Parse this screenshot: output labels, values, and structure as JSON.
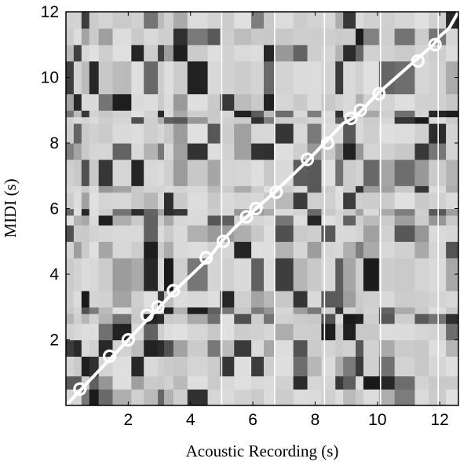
{
  "chart_data": {
    "type": "heatmap",
    "title": "",
    "xlabel": "Acoustic Recording (s)",
    "ylabel": "MIDI (s)",
    "xlim": [
      0,
      12.6
    ],
    "ylim": [
      0,
      12
    ],
    "x_ticks": [
      2,
      4,
      6,
      8,
      10,
      12
    ],
    "y_ticks": [
      2,
      4,
      6,
      8,
      10,
      12
    ],
    "grid": false,
    "colormap": "grayscale",
    "colors": {
      "background": "#d6d6d6",
      "path": "#ffffff",
      "frame": "#000000"
    },
    "column_breaks": [
      0,
      0.25,
      0.5,
      0.75,
      1.05,
      1.5,
      2.1,
      2.5,
      2.95,
      3.15,
      3.45,
      3.9,
      4.55,
      4.95,
      5.4,
      5.95,
      6.35,
      6.7,
      7.3,
      7.75,
      8.2,
      8.65,
      8.9,
      9.3,
      9.55,
      10.05,
      10.55,
      11.2,
      11.65,
      12.2,
      12.6
    ],
    "row_breaks": [
      0,
      0.5,
      0.9,
      1.5,
      2.0,
      2.5,
      2.8,
      3.0,
      3.5,
      4.5,
      5.0,
      5.5,
      5.8,
      6.0,
      6.5,
      6.7,
      7.5,
      8.0,
      8.6,
      8.8,
      9.0,
      9.5,
      10.5,
      11.0,
      11.5,
      12.0
    ],
    "vertical_lines_x": [
      5.0,
      6.7,
      8.3,
      10.1,
      11.95
    ],
    "alignment_path": [
      [
        0.0,
        0.0
      ],
      [
        0.4,
        0.4
      ],
      [
        1.5,
        1.5
      ],
      [
        2.0,
        2.0
      ],
      [
        2.4,
        2.4
      ],
      [
        2.7,
        2.7
      ],
      [
        3.0,
        3.0
      ],
      [
        3.5,
        3.5
      ],
      [
        4.6,
        4.5
      ],
      [
        5.0,
        5.0
      ],
      [
        5.4,
        5.4
      ],
      [
        5.8,
        5.75
      ],
      [
        6.1,
        6.0
      ],
      [
        6.7,
        6.5
      ],
      [
        7.8,
        7.5
      ],
      [
        8.3,
        8.0
      ],
      [
        8.9,
        8.6
      ],
      [
        9.3,
        8.8
      ],
      [
        9.5,
        9.0
      ],
      [
        10.0,
        9.5
      ],
      [
        11.2,
        10.5
      ],
      [
        11.8,
        11.0
      ],
      [
        12.0,
        11.25
      ],
      [
        12.3,
        11.5
      ],
      [
        12.6,
        12.0
      ]
    ],
    "path_markers": [
      [
        0.45,
        0.5
      ],
      [
        1.4,
        1.5
      ],
      [
        2.0,
        2.0
      ],
      [
        2.6,
        2.75
      ],
      [
        2.95,
        3.0
      ],
      [
        3.45,
        3.5
      ],
      [
        4.5,
        4.5
      ],
      [
        5.05,
        5.0
      ],
      [
        5.8,
        5.75
      ],
      [
        6.1,
        6.0
      ],
      [
        6.75,
        6.5
      ],
      [
        7.75,
        7.5
      ],
      [
        8.4,
        8.0
      ],
      [
        9.15,
        8.75
      ],
      [
        9.45,
        9.0
      ],
      [
        10.05,
        9.5
      ],
      [
        11.3,
        10.5
      ],
      [
        11.85,
        11.0
      ]
    ]
  }
}
